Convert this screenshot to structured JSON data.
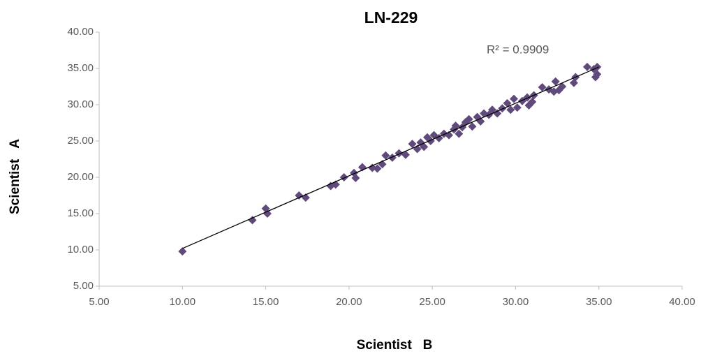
{
  "chart_data": {
    "type": "scatter",
    "title": "LN-229",
    "x_label": "Scientist   B",
    "y_label": "Scientist   A",
    "annotation": "R² = 0.9909",
    "color": "#604a7b",
    "x": [
      10.0,
      14.2,
      15.0,
      15.1,
      17.0,
      17.4,
      18.9,
      19.2,
      19.7,
      20.3,
      20.4,
      20.8,
      21.4,
      21.7,
      22.0,
      22.2,
      22.6,
      23.0,
      23.4,
      23.8,
      24.1,
      24.3,
      24.5,
      24.7,
      24.9,
      25.1,
      25.4,
      25.7,
      26.0,
      26.3,
      26.4,
      26.6,
      26.8,
      27.0,
      27.2,
      27.4,
      27.7,
      27.9,
      28.1,
      28.4,
      28.6,
      28.9,
      29.2,
      29.5,
      29.7,
      29.9,
      30.1,
      30.4,
      30.7,
      30.8,
      31.0,
      31.1,
      31.6,
      32.0,
      32.3,
      32.4,
      32.6,
      32.8,
      33.5,
      33.6,
      34.3,
      34.7,
      34.8,
      34.9,
      34.9
    ],
    "values": [
      9.8,
      14.1,
      15.7,
      15.0,
      17.5,
      17.2,
      18.8,
      19.0,
      20.0,
      20.6,
      19.9,
      21.4,
      21.3,
      21.2,
      21.8,
      23.0,
      22.7,
      23.3,
      23.1,
      24.6,
      23.9,
      24.8,
      24.2,
      25.5,
      25.0,
      25.8,
      25.4,
      26.0,
      25.8,
      26.6,
      27.1,
      26.0,
      26.9,
      27.6,
      28.0,
      27.0,
      28.3,
      27.7,
      28.8,
      28.6,
      29.3,
      28.8,
      29.5,
      30.2,
      29.3,
      30.8,
      29.6,
      30.5,
      31.0,
      29.9,
      30.4,
      31.3,
      32.4,
      32.1,
      31.8,
      33.2,
      32.0,
      32.5,
      33.0,
      33.8,
      35.2,
      34.9,
      33.8,
      34.2,
      35.2
    ],
    "trendline": {
      "x": [
        10,
        35
      ],
      "y": [
        10.2,
        35.2
      ],
      "color": "#000000"
    },
    "xlim": [
      5,
      40
    ],
    "ylim": [
      5,
      40
    ],
    "xticks": [
      {
        "value": 5,
        "label": "5.00"
      },
      {
        "value": 10,
        "label": "10.00"
      },
      {
        "value": 15,
        "label": "15.00"
      },
      {
        "value": 20,
        "label": "20.00"
      },
      {
        "value": 25,
        "label": "25.00"
      },
      {
        "value": 30,
        "label": "30.00"
      },
      {
        "value": 35,
        "label": "35.00"
      },
      {
        "value": 40,
        "label": "40.00"
      }
    ],
    "yticks": [
      {
        "value": 5,
        "label": "5.00"
      },
      {
        "value": 10,
        "label": "10.00"
      },
      {
        "value": 15,
        "label": "15.00"
      },
      {
        "value": 20,
        "label": "20.00"
      },
      {
        "value": 25,
        "label": "25.00"
      },
      {
        "value": 30,
        "label": "30.00"
      },
      {
        "value": 35,
        "label": "35.00"
      },
      {
        "value": 40,
        "label": "40.00"
      }
    ],
    "grid": false
  }
}
